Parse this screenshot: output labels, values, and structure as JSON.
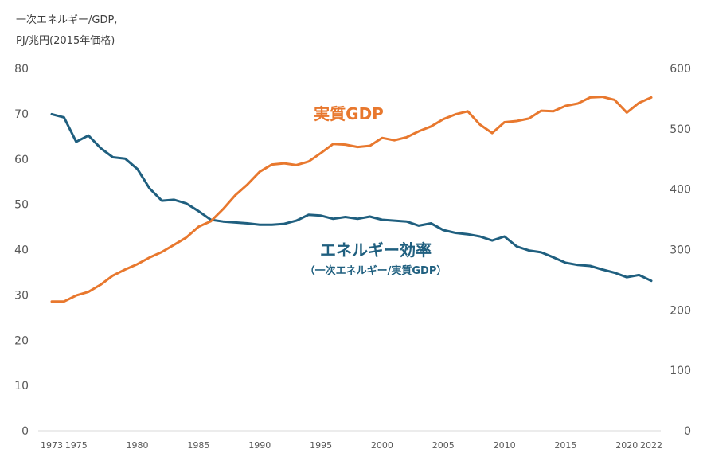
{
  "unit_label_line1": "一次エネルギー/GDP,",
  "unit_label_line2": "PJ/兆円(2015年価格)",
  "colors": {
    "efficiency": "#1f5f7f",
    "gdp": "#e8782e",
    "axis": "#595959",
    "baseline": "#d9d9d9"
  },
  "chart_data": {
    "type": "line",
    "x": [
      1973,
      1974,
      1975,
      1976,
      1977,
      1978,
      1979,
      1980,
      1981,
      1982,
      1983,
      1984,
      1985,
      1986,
      1987,
      1988,
      1989,
      1990,
      1991,
      1992,
      1993,
      1994,
      1995,
      1996,
      1997,
      1998,
      1999,
      2000,
      2001,
      2002,
      2003,
      2004,
      2005,
      2006,
      2007,
      2008,
      2009,
      2010,
      2011,
      2012,
      2013,
      2014,
      2015,
      2016,
      2017,
      2018,
      2019,
      2020,
      2021,
      2022
    ],
    "x_tick_labels": [
      "1973",
      "1975",
      "1980",
      "1985",
      "1990",
      "1995",
      "2000",
      "2005",
      "2010",
      "2015",
      "2020",
      "2022"
    ],
    "x_tick_values": [
      1973,
      1975,
      1980,
      1985,
      1990,
      1995,
      2000,
      2005,
      2010,
      2015,
      2020,
      2022
    ],
    "y_left": {
      "ticks": [
        0,
        10,
        20,
        30,
        40,
        50,
        60,
        70,
        80
      ],
      "lim": [
        0,
        80
      ]
    },
    "y_right": {
      "ticks": [
        0,
        100,
        200,
        300,
        400,
        500,
        600
      ],
      "lim": [
        0,
        600
      ]
    },
    "series": [
      {
        "name": "エネルギー効率",
        "label_line1": "エネルギー効率",
        "label_line2": "（一次エネルギー/実質GDP）",
        "axis": "left",
        "values": [
          69.9,
          69.2,
          63.8,
          65.2,
          62.4,
          60.4,
          60.1,
          57.8,
          53.5,
          50.8,
          51.0,
          50.2,
          48.5,
          46.6,
          46.2,
          46.0,
          45.8,
          45.5,
          45.5,
          45.7,
          46.4,
          47.7,
          47.5,
          46.8,
          47.2,
          46.8,
          47.3,
          46.6,
          46.4,
          46.2,
          45.3,
          45.8,
          44.3,
          43.7,
          43.4,
          42.9,
          42.0,
          42.9,
          40.7,
          39.8,
          39.4,
          38.3,
          37.1,
          36.6,
          36.4,
          35.6,
          34.9,
          33.9,
          34.4,
          33.1
        ]
      },
      {
        "name": "実質GDP",
        "label_line1": "実質GDP",
        "axis": "right",
        "values": [
          214,
          214,
          224,
          230,
          242,
          257,
          267,
          276,
          287,
          296,
          308,
          320,
          338,
          347,
          367,
          390,
          408,
          429,
          441,
          443,
          440,
          446,
          460,
          475,
          474,
          470,
          472,
          485,
          481,
          486,
          496,
          504,
          516,
          524,
          529,
          507,
          493,
          511,
          513,
          517,
          530,
          529,
          538,
          542,
          552,
          553,
          548,
          527,
          543,
          552
        ]
      }
    ]
  }
}
